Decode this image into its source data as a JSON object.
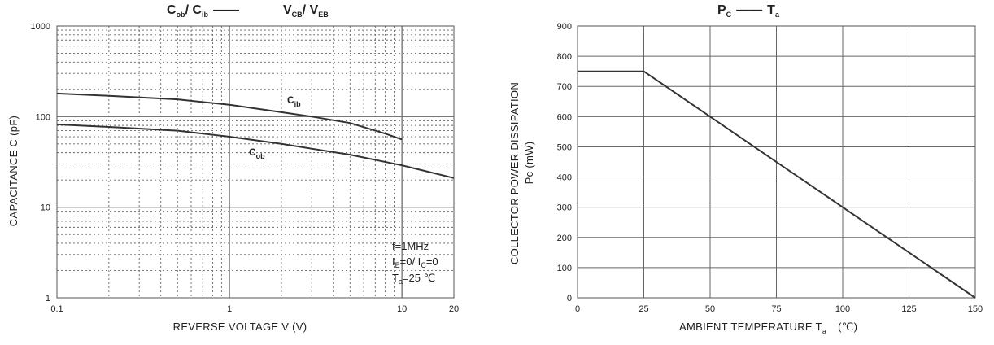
{
  "chart_data": [
    {
      "type": "line",
      "title_parts": {
        "left_main_1": "C",
        "left_sub_1": "ob",
        "left_slash": "/ ",
        "left_main_2": "C",
        "left_sub_2": "ib",
        "dash": "——",
        "right_main_1": "V",
        "right_sub_1": "CB",
        "right_slash": "/ ",
        "right_main_2": "V",
        "right_sub_2": "EB"
      },
      "xlabel": "REVERSE VOLTAGE V (V)",
      "ylabel": "CAPACITANCE   C   (pF)",
      "x_scale": "log",
      "y_scale": "log",
      "xlim": [
        0.1,
        20
      ],
      "ylim": [
        1,
        1000
      ],
      "x_ticks": [
        0.1,
        1,
        10,
        20
      ],
      "x_tick_labels": [
        "0.1",
        "1",
        "10",
        "20"
      ],
      "y_ticks": [
        1,
        10,
        100,
        1000
      ],
      "y_tick_labels": [
        "1",
        "10",
        "100",
        "1000"
      ],
      "grid": true,
      "series": [
        {
          "label_main": "C",
          "label_sub": "ib",
          "points": [
            [
              0.1,
              180
            ],
            [
              0.2,
              170
            ],
            [
              0.5,
              155
            ],
            [
              1,
              135
            ],
            [
              2,
              112
            ],
            [
              3,
              100
            ],
            [
              5,
              85
            ],
            [
              8,
              65
            ],
            [
              10,
              56
            ]
          ]
        },
        {
          "label_main": "C",
          "label_sub": "ob",
          "points": [
            [
              0.1,
              82
            ],
            [
              0.2,
              77
            ],
            [
              0.5,
              70
            ],
            [
              1,
              60
            ],
            [
              2,
              50
            ],
            [
              5,
              38
            ],
            [
              10,
              29
            ],
            [
              20,
              21
            ]
          ]
        }
      ],
      "annotations": {
        "freq": "f=1MHz",
        "cond_main_1": "I",
        "cond_sub_1": "E",
        "cond_mid": "=0/  I",
        "cond_sub_2": "C",
        "cond_end": "=0",
        "temp_main": "T",
        "temp_sub": "a",
        "temp_end": "=25 ℃"
      }
    },
    {
      "type": "line",
      "title_parts": {
        "main_1": "P",
        "sub_1": "C",
        "dash": "——",
        "main_2": "T",
        "sub_2": "a"
      },
      "xlabel_main": "AMBIENT TEMPERATURE   T",
      "xlabel_sub": "a",
      "xlabel_unit": "(℃)",
      "ylabel_1": "COLLECTOR POWER DISSIPATION",
      "ylabel_2": "Pc (mW)",
      "xlim": [
        0,
        150
      ],
      "ylim": [
        0,
        900
      ],
      "x_ticks": [
        0,
        25,
        50,
        75,
        100,
        125,
        150
      ],
      "y_ticks": [
        0,
        100,
        200,
        300,
        400,
        500,
        600,
        700,
        800,
        900
      ],
      "grid": true,
      "series": [
        {
          "points": [
            [
              0,
              750
            ],
            [
              25,
              750
            ],
            [
              150,
              0
            ]
          ]
        }
      ]
    }
  ]
}
